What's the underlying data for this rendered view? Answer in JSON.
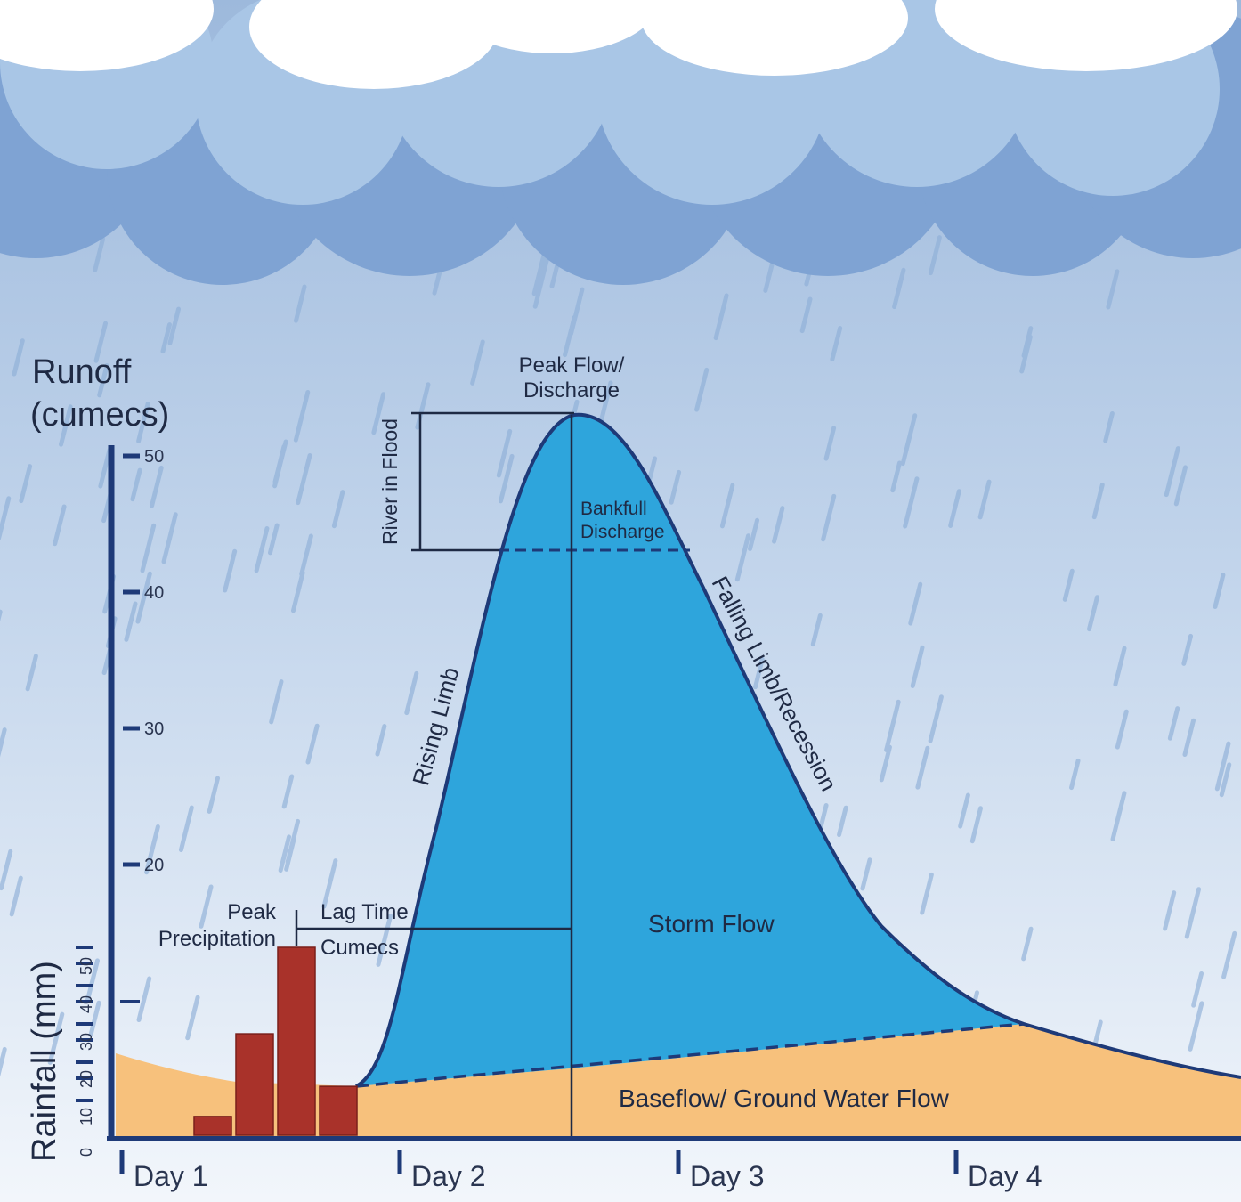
{
  "axes": {
    "runoff_label_line1": "Runoff",
    "runoff_label_line2": "(cumecs)",
    "rainfall_label": "Rainfall (mm)",
    "runoff_ticks": [
      "50",
      "40",
      "30",
      "20"
    ],
    "rainfall_ticks": [
      "50",
      "40",
      "30",
      "20",
      "10",
      "0"
    ],
    "days": [
      "Day 1",
      "Day 2",
      "Day 3",
      "Day 4"
    ]
  },
  "labels": {
    "peak_flow_line1": "Peak Flow/",
    "peak_flow_line2": "Discharge",
    "river_in_flood": "River in Flood",
    "bankfull_line1": "Bankfull",
    "bankfull_line2": "Discharge",
    "rising_limb": "Rising Limb",
    "falling_limb": "Falling Limb/Recession",
    "peak_precip_line1": "Peak",
    "peak_precip_line2": "Precipitation",
    "lag_time": "Lag Time",
    "cumecs": "Cumecs",
    "storm_flow": "Storm Flow",
    "baseflow": "Baseflow/ Ground Water Flow"
  },
  "colors": {
    "axis": "#1e3a78",
    "storm_flow": "#2ea5dc",
    "baseflow": "#f7c17c",
    "rainfall_bars": "#a9322a",
    "cloud_light": "#ffffff",
    "cloud_mid": "#a9c6e6",
    "cloud_dark": "#7fa3d3"
  },
  "chart_data": {
    "type": "area",
    "rainfall_mm": [
      {
        "position": "Day 1",
        "value": 5
      },
      {
        "position": "Day 1",
        "value": 27
      },
      {
        "position": "Day 1",
        "value": 50
      },
      {
        "position": "Day 1",
        "value": 13
      }
    ],
    "runoff_ylim": [
      0,
      50
    ],
    "rainfall_ylim": [
      0,
      50
    ],
    "peak_runoff_cumecs": 53,
    "bankfull_discharge_cumecs": 43
  }
}
